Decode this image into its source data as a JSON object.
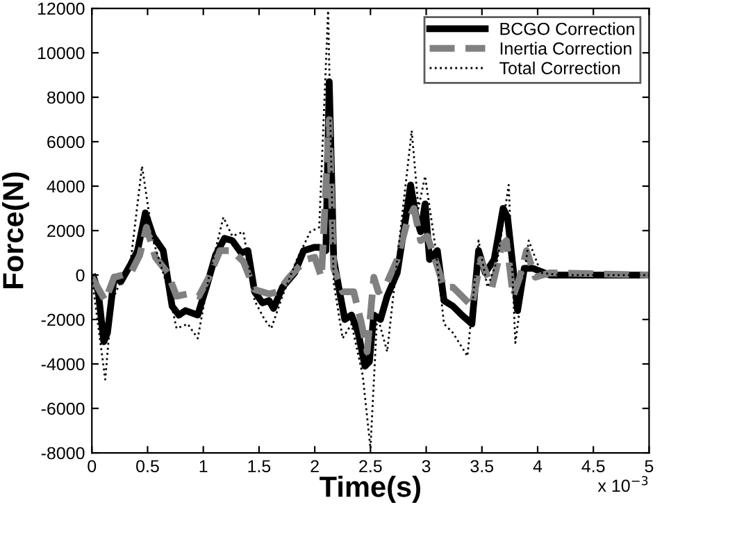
{
  "chart_data": {
    "type": "line",
    "xlabel": "Time(s)",
    "ylabel": "Force(N)",
    "annotations": [
      "x 10$^{−3}$"
    ],
    "xlim": [
      0,
      5
    ],
    "ylim": [
      -8000,
      12000
    ],
    "xticks": [
      0,
      0.5,
      1,
      1.5,
      2,
      2.5,
      3,
      3.5,
      4,
      4.5,
      5
    ],
    "yticks": [
      -8000,
      -6000,
      -4000,
      -2000,
      0,
      2000,
      4000,
      6000,
      8000,
      10000,
      12000
    ],
    "grid": false,
    "legend": "top right",
    "series": [
      {
        "name": "BCGO Correction",
        "color": "#000000",
        "line_style": "solid",
        "x": [
          0.016,
          0.057,
          0.107,
          0.14,
          0.2,
          0.26,
          0.35,
          0.41,
          0.48,
          0.55,
          0.64,
          0.72,
          0.78,
          0.84,
          0.95,
          1.03,
          1.11,
          1.19,
          1.26,
          1.34,
          1.4,
          1.46,
          1.53,
          1.59,
          1.63,
          1.71,
          1.82,
          1.9,
          2.0,
          2.04,
          2.1,
          2.13,
          2.17,
          2.23,
          2.27,
          2.33,
          2.39,
          2.45,
          2.49,
          2.53,
          2.59,
          2.65,
          2.74,
          2.83,
          2.86,
          2.91,
          2.95,
          2.99,
          3.03,
          3.1,
          3.16,
          3.24,
          3.32,
          3.41,
          3.47,
          3.53,
          3.61,
          3.69,
          3.73,
          3.78,
          3.82,
          3.88,
          3.96,
          4.11,
          5.0
        ],
        "values": [
          -100,
          -750,
          -3000,
          -2600,
          -100,
          -300,
          500,
          1100,
          2800,
          1750,
          1100,
          -1400,
          -1800,
          -1600,
          -1800,
          -500,
          900,
          1650,
          1550,
          1000,
          1100,
          -750,
          -1250,
          -1150,
          -1500,
          -550,
          100,
          1100,
          1250,
          1250,
          1100,
          8700,
          700,
          -950,
          -2000,
          -1800,
          -2600,
          -4100,
          -3900,
          -1800,
          -2000,
          -950,
          100,
          3000,
          4050,
          2600,
          1950,
          3200,
          700,
          1100,
          -1150,
          -1400,
          -1800,
          -2200,
          1100,
          100,
          700,
          3000,
          2600,
          300,
          -1600,
          300,
          300,
          0,
          0
        ]
      },
      {
        "name": "Inertia Correction",
        "color": "#808080",
        "line_style": "dashed",
        "x": [
          0.0,
          0.12,
          0.2,
          0.35,
          0.43,
          0.49,
          0.57,
          0.68,
          0.76,
          0.86,
          0.96,
          1.05,
          1.15,
          1.26,
          1.36,
          1.46,
          1.59,
          1.67,
          1.77,
          1.92,
          2.0,
          2.06,
          2.13,
          2.17,
          2.25,
          2.35,
          2.42,
          2.47,
          2.53,
          2.57,
          2.63,
          2.74,
          2.83,
          2.89,
          2.95,
          3.01,
          3.08,
          3.16,
          3.24,
          3.32,
          3.41,
          3.49,
          3.59,
          3.68,
          3.72,
          3.78,
          3.84,
          3.9,
          3.98,
          4.11,
          5.0
        ],
        "values": [
          -100,
          -1150,
          -100,
          100,
          900,
          2150,
          800,
          100,
          -950,
          -850,
          -950,
          -100,
          1100,
          1100,
          600,
          -650,
          -850,
          -750,
          -100,
          700,
          800,
          -100,
          7000,
          300,
          -750,
          -750,
          -2200,
          -3450,
          -100,
          -750,
          -550,
          700,
          2400,
          3000,
          1550,
          1750,
          700,
          -550,
          -550,
          -950,
          -1400,
          700,
          -550,
          1350,
          1550,
          -950,
          -100,
          1100,
          -100,
          100,
          0
        ]
      },
      {
        "name": "Total Correction",
        "color": "#000000",
        "line_style": "dotted",
        "x": [
          0.0,
          0.12,
          0.18,
          0.35,
          0.45,
          0.55,
          0.68,
          0.76,
          0.86,
          0.95,
          1.05,
          1.18,
          1.26,
          1.36,
          1.46,
          1.55,
          1.61,
          1.71,
          1.84,
          1.96,
          2.04,
          2.12,
          2.17,
          2.25,
          2.33,
          2.43,
          2.5,
          2.56,
          2.65,
          2.74,
          2.87,
          2.93,
          2.99,
          3.08,
          3.16,
          3.24,
          3.37,
          3.47,
          3.55,
          3.64,
          3.74,
          3.8,
          3.92,
          4.03,
          4.2,
          5.0
        ],
        "values": [
          -100,
          -4700,
          -1150,
          700,
          4900,
          1550,
          -550,
          -2400,
          -2200,
          -2850,
          -100,
          2600,
          1750,
          1950,
          -1150,
          -2000,
          -2400,
          -950,
          700,
          1950,
          2150,
          11900,
          -350,
          -2850,
          -2200,
          -4500,
          -7800,
          -1800,
          -3450,
          700,
          6500,
          3000,
          4450,
          1350,
          -2200,
          -2600,
          -3650,
          1550,
          -550,
          700,
          4050,
          -3050,
          1550,
          100,
          0,
          0
        ]
      }
    ]
  }
}
